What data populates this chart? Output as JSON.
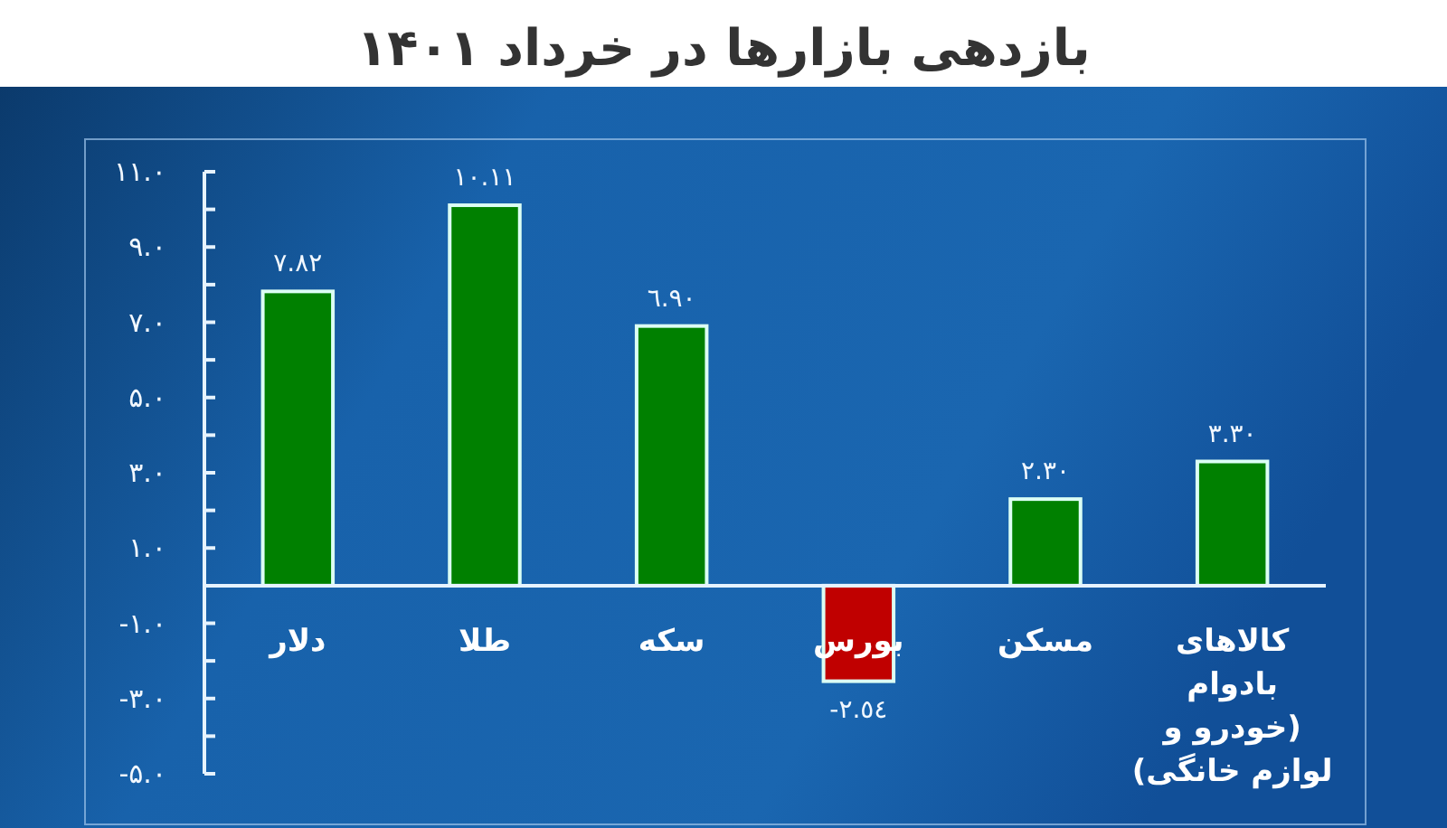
{
  "chart_data": {
    "type": "bar",
    "title": "بازدهی بازارها در خرداد ۱۴۰۱",
    "categories": [
      "دلار",
      "طلا",
      "سکه",
      "بورس",
      "مسکن",
      "کالاهای بادوام (خودرو و لوازم خانگی)"
    ],
    "values": [
      7.82,
      10.11,
      6.9,
      -2.54,
      2.3,
      3.3
    ],
    "colors": [
      "#008000",
      "#008000",
      "#008000",
      "#c00000",
      "#008000",
      "#008000"
    ],
    "value_labels": [
      "٧.٨٢",
      "١٠.١١",
      "٦.٩٠",
      "-٢.٥٤",
      "٢.٣٠",
      "٣.٣٠"
    ],
    "ylim": [
      -5,
      11
    ],
    "yticks": [
      {
        "value": 11,
        "label": "۱۱.۰"
      },
      {
        "value": 10,
        "label": null
      },
      {
        "value": 9,
        "label": "۹.۰"
      },
      {
        "value": 8,
        "label": null
      },
      {
        "value": 7,
        "label": "۷.۰"
      },
      {
        "value": 6,
        "label": null
      },
      {
        "value": 5,
        "label": "۵.۰"
      },
      {
        "value": 4,
        "label": null
      },
      {
        "value": 3,
        "label": "۳.۰"
      },
      {
        "value": 2,
        "label": null
      },
      {
        "value": 1,
        "label": "۱.۰"
      },
      {
        "value": -1,
        "label": "-۱.۰"
      },
      {
        "value": -2,
        "label": null
      },
      {
        "value": -3,
        "label": "-۳.۰"
      },
      {
        "value": -4,
        "label": null
      },
      {
        "value": -5,
        "label": "-۵.۰"
      }
    ]
  }
}
